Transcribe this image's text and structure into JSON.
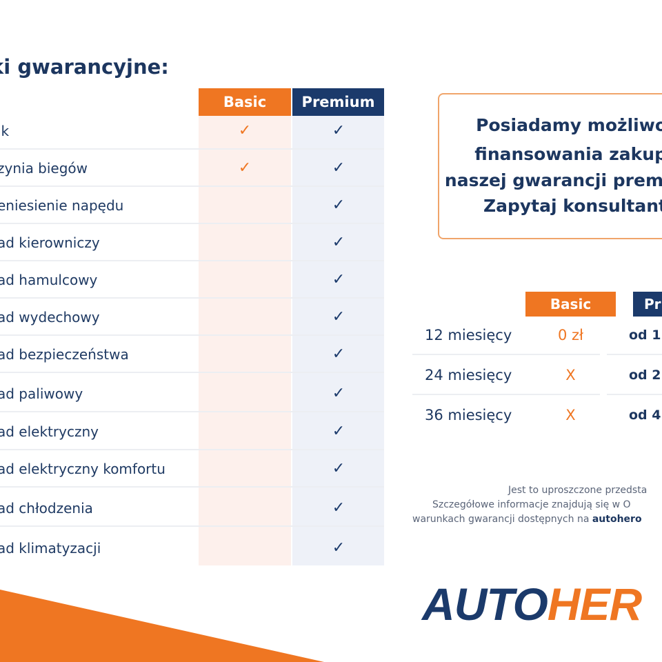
{
  "title": "ki gwarancyjne:",
  "table": {
    "headers": {
      "basic": "Basic",
      "premium": "Premium"
    },
    "check_symbol": "✓",
    "rows": [
      {
        "label": "ik",
        "basic": true,
        "premium": true
      },
      {
        "label": "zynia biegów",
        "basic": true,
        "premium": true
      },
      {
        "label": "eniesienie napędu",
        "basic": false,
        "premium": true
      },
      {
        "label": "ad kierowniczy",
        "basic": false,
        "premium": true
      },
      {
        "label": "ad hamulcowy",
        "basic": false,
        "premium": true
      },
      {
        "label": "ad wydechowy",
        "basic": false,
        "premium": true
      },
      {
        "label": "ad bezpieczeństwa",
        "basic": false,
        "premium": true
      },
      {
        "label": "ad paliwowy",
        "basic": false,
        "premium": true
      },
      {
        "label": "ad elektryczny",
        "basic": false,
        "premium": true
      },
      {
        "label": "ad elektryczny komfortu",
        "basic": false,
        "premium": true
      },
      {
        "label": "ad chłodzenia",
        "basic": false,
        "premium": true
      },
      {
        "label": "ad klimatyzacji",
        "basic": false,
        "premium": true
      }
    ]
  },
  "financing_box": {
    "lines": [
      "Posiadamy możliwo",
      "finansowania zakup",
      "naszej gwarancji prem",
      "Zapytaj konsultant"
    ]
  },
  "pricing": {
    "headers": {
      "basic": "Basic",
      "premium": "Pr"
    },
    "rows": [
      {
        "period": "12 miesięcy",
        "basic": "0 zł",
        "premium": "od 1"
      },
      {
        "period": "24 miesięcy",
        "basic": "X",
        "premium": "od 2"
      },
      {
        "period": "36 miesięcy",
        "basic": "X",
        "premium": "od 4"
      }
    ]
  },
  "footnote": {
    "line1": "Jest to uproszczone przedsta",
    "line2": "Szczegółowe informacje znajdują się w O",
    "line3_prefix": "warunkach gwarancji dostępnych na ",
    "line3_link": "autohero"
  },
  "logo": {
    "part1": "AUTO",
    "part2": "HER"
  },
  "colors": {
    "orange": "#ef7622",
    "navy": "#1b3a6b"
  }
}
